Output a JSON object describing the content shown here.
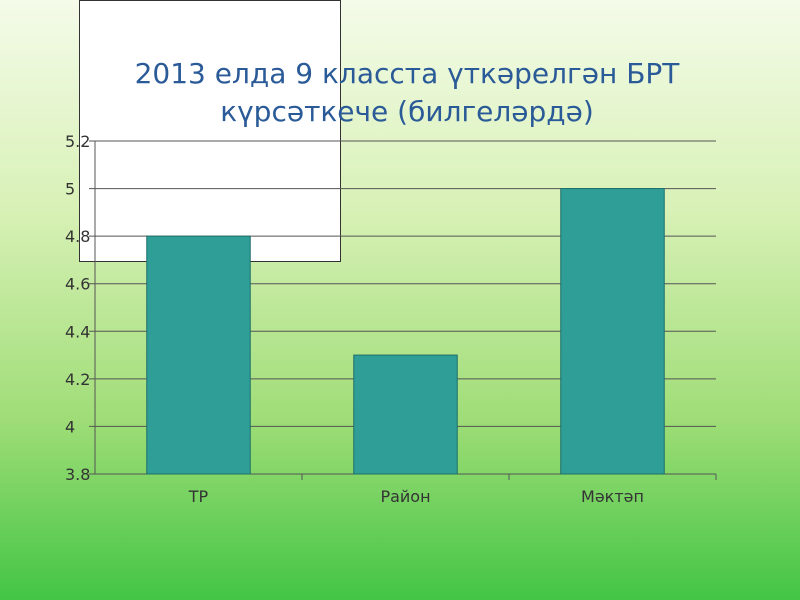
{
  "slide": {
    "title_line1": "2013 елда 9 класста үткәрелгән БРТ",
    "title_line2": "күрсәткече (билгеләрдә)"
  },
  "colors": {
    "bar": "#2e9e97",
    "title": "#2a5a97",
    "grid": "#555555",
    "text": "#333333"
  },
  "chart_data": {
    "type": "bar",
    "title": "2013 елда 9 класста үткәрелгән БРТ күрсәткече (билгеләрдә)",
    "categories": [
      "ТР",
      "Район",
      "Мәктәп"
    ],
    "values": [
      4.8,
      4.3,
      5.0
    ],
    "ylim": [
      3.8,
      5.2
    ],
    "yticks": [
      "3.8",
      "4",
      "4.2",
      "4.4",
      "4.6",
      "4.8",
      "5",
      "5.2"
    ],
    "xlabel": "",
    "ylabel": "",
    "grid": true,
    "legend": "none"
  }
}
